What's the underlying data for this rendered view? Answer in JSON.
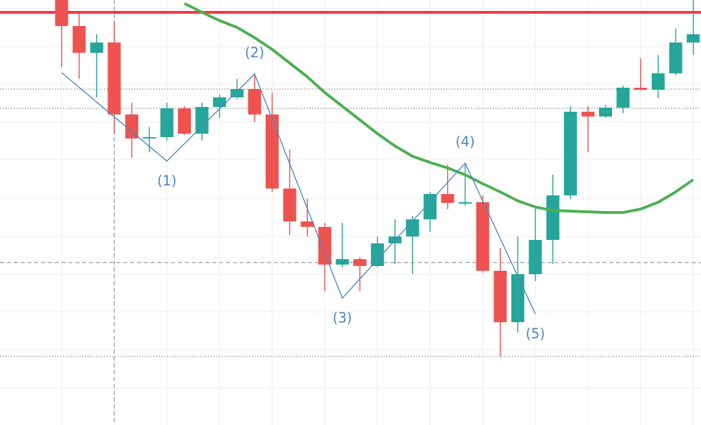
{
  "chart_data": {
    "type": "candlestick",
    "ylim": [
      0,
      620
    ],
    "up_color": "#26a69a",
    "down_color": "#ef5350",
    "grid": true,
    "grid_y": [
      608,
      552,
      497,
      442,
      387,
      330,
      275,
      220,
      165,
      110,
      54
    ],
    "grid_x": [
      0,
      3,
      6,
      9,
      12,
      15,
      18,
      21,
      24,
      27,
      30,
      33,
      36
    ],
    "open": [
      620,
      582,
      543,
      558,
      453,
      418,
      420,
      462,
      425,
      464,
      478,
      490,
      453,
      345,
      297,
      289,
      234,
      242,
      232,
      265,
      275,
      300,
      337,
      324,
      325,
      225,
      150,
      220,
      270,
      335,
      457,
      450,
      463,
      492,
      489,
      513,
      558
    ],
    "high": [
      620,
      600,
      570,
      590,
      470,
      435,
      470,
      465,
      470,
      482,
      505,
      512,
      485,
      402,
      330,
      295,
      295,
      245,
      275,
      300,
      305,
      340,
      380,
      380,
      335,
      258,
      275,
      320,
      365,
      465,
      465,
      467,
      495,
      535,
      540,
      578,
      620
    ],
    "low": [
      522,
      505,
      478,
      425,
      390,
      398,
      415,
      423,
      415,
      448,
      475,
      442,
      340,
      277,
      275,
      195,
      230,
      195,
      230,
      235,
      220,
      282,
      315,
      320,
      222,
      100,
      135,
      210,
      235,
      330,
      398,
      448,
      455,
      488,
      477,
      510,
      540
    ],
    "close": [
      582,
      543,
      558,
      453,
      418,
      420,
      462,
      425,
      464,
      478,
      490,
      453,
      345,
      297,
      289,
      234,
      242,
      232,
      265,
      275,
      300,
      337,
      324,
      325,
      225,
      150,
      220,
      270,
      335,
      457,
      450,
      463,
      492,
      489,
      513,
      558,
      570
    ],
    "moving_average": {
      "color": "#4caf50",
      "values": [
        null,
        null,
        null,
        null,
        null,
        null,
        null,
        615,
        602,
        590,
        580,
        565,
        548,
        528,
        508,
        485,
        465,
        445,
        425,
        407,
        392,
        383,
        375,
        365,
        352,
        340,
        327,
        318,
        313,
        312,
        311,
        310,
        310,
        315,
        325,
        340,
        358
      ]
    },
    "wave": {
      "color": "#4a86c8",
      "x": [
        0,
        6,
        11,
        16,
        23,
        27
      ],
      "values": [
        514,
        385,
        512,
        185,
        382,
        162
      ],
      "labels": [
        null,
        "(1)",
        "(2)",
        "(3)",
        "(4)",
        "(5)"
      ]
    },
    "levels": [
      {
        "value": 602,
        "color": "#f23645",
        "style": "solid"
      },
      {
        "value": 490,
        "color": "#888888",
        "style": "dotted"
      },
      {
        "value": 462,
        "color": "#888888",
        "style": "dotted"
      },
      {
        "value": 237,
        "color": "#999999",
        "style": "dashed"
      },
      {
        "value": 100,
        "color": "#888888",
        "style": "dotted"
      }
    ],
    "vertical_marker": {
      "x": 3,
      "color": "#999999",
      "style": "dashed"
    }
  }
}
